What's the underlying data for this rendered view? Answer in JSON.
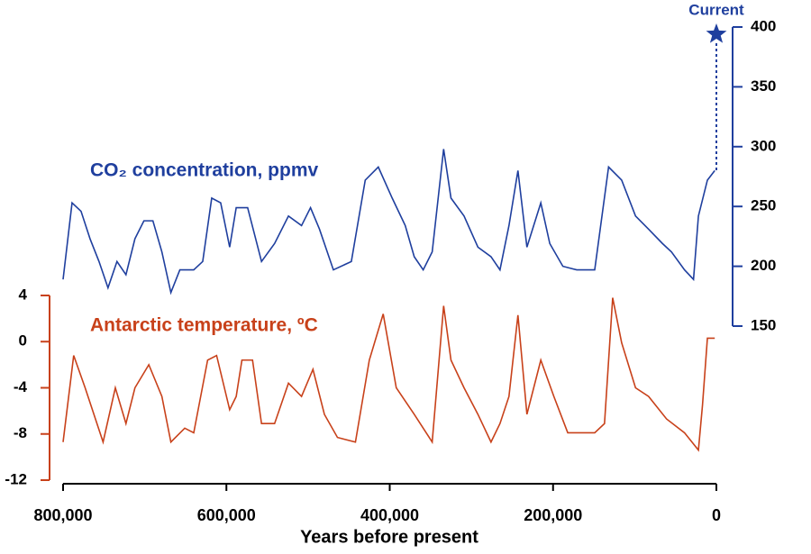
{
  "chart_data": {
    "type": "line",
    "xlabel": "Years before present",
    "xlim": [
      800000,
      0
    ],
    "xticks": [
      {
        "value": 800000,
        "label": "800,000"
      },
      {
        "value": 600000,
        "label": "600,000"
      },
      {
        "value": 400000,
        "label": "400,000"
      },
      {
        "value": 200000,
        "label": "200,000"
      },
      0
    ],
    "ylim": [
      -12,
      4
    ],
    "yticks": [
      4,
      0,
      -4,
      -8,
      -12
    ],
    "y2lim": [
      150,
      400
    ],
    "y2ticks": [
      400,
      350,
      300,
      250,
      200,
      150
    ],
    "series": [
      {
        "name": "CO₂ concentration, ppmv",
        "color": "#1f3f9e",
        "axis": "y2",
        "x": [
          800000,
          789000,
          778000,
          767000,
          756000,
          745000,
          734000,
          723000,
          712000,
          701000,
          690000,
          679000,
          668000,
          657000,
          640000,
          629000,
          618000,
          607000,
          596000,
          588000,
          574000,
          557000,
          541000,
          524000,
          508000,
          497000,
          486000,
          469000,
          447000,
          430000,
          414000,
          397000,
          381000,
          370000,
          359000,
          348000,
          334000,
          325000,
          309000,
          292000,
          276000,
          265000,
          254000,
          243000,
          232000,
          215000,
          204000,
          188000,
          171000,
          149000,
          132000,
          116000,
          99000,
          83000,
          66000,
          55000,
          39000,
          28000,
          22000,
          11000,
          2000
        ],
        "values": [
          189,
          253,
          246,
          223,
          204,
          182,
          204,
          193,
          223,
          238,
          238,
          212,
          178,
          197,
          197,
          204,
          257,
          253,
          216,
          249,
          249,
          204,
          219,
          242,
          234,
          249,
          231,
          197,
          204,
          272,
          283,
          257,
          234,
          208,
          197,
          212,
          298,
          257,
          242,
          216,
          208,
          197,
          234,
          280,
          216,
          253,
          219,
          200,
          197,
          197,
          283,
          272,
          242,
          231,
          219,
          212,
          197,
          189,
          242,
          272,
          280
        ]
      },
      {
        "name": "Antarctic temperature, ºC",
        "color": "#c8411a",
        "axis": "y",
        "x": [
          800000,
          787000,
          773000,
          751000,
          736000,
          723000,
          712000,
          695000,
          679000,
          668000,
          651000,
          640000,
          623000,
          612000,
          596000,
          588000,
          581000,
          568000,
          557000,
          541000,
          524000,
          508000,
          494000,
          480000,
          464000,
          442000,
          425000,
          408000,
          392000,
          370000,
          348000,
          334000,
          325000,
          309000,
          292000,
          276000,
          265000,
          254000,
          243000,
          232000,
          215000,
          199000,
          182000,
          149000,
          137000,
          127000,
          116000,
          99000,
          83000,
          61000,
          39000,
          22000,
          17000,
          11000,
          2000
        ],
        "values": [
          -8.7,
          -1.2,
          -4,
          -8.7,
          -4,
          -7.1,
          -4,
          -2,
          -4.75,
          -8.7,
          -7.5,
          -7.9,
          -1.6,
          -1.2,
          -5.9,
          -4.75,
          -1.6,
          -1.6,
          -7.1,
          -7.1,
          -3.6,
          -4.75,
          -2.4,
          -6.3,
          -8.3,
          -8.7,
          -1.6,
          2.4,
          -4,
          -6.3,
          -8.7,
          3.1,
          -1.6,
          -4,
          -6.3,
          -8.7,
          -7.1,
          -4.75,
          2.3,
          -6.3,
          -1.6,
          -4.75,
          -7.9,
          -7.9,
          -7.1,
          3.8,
          -0.1,
          -4,
          -4.75,
          -6.7,
          -7.9,
          -9.4,
          -5.5,
          0.3,
          0.3
        ]
      }
    ],
    "annotation": {
      "text": "Current",
      "x": 0,
      "value": 394,
      "axis": "y2"
    }
  }
}
